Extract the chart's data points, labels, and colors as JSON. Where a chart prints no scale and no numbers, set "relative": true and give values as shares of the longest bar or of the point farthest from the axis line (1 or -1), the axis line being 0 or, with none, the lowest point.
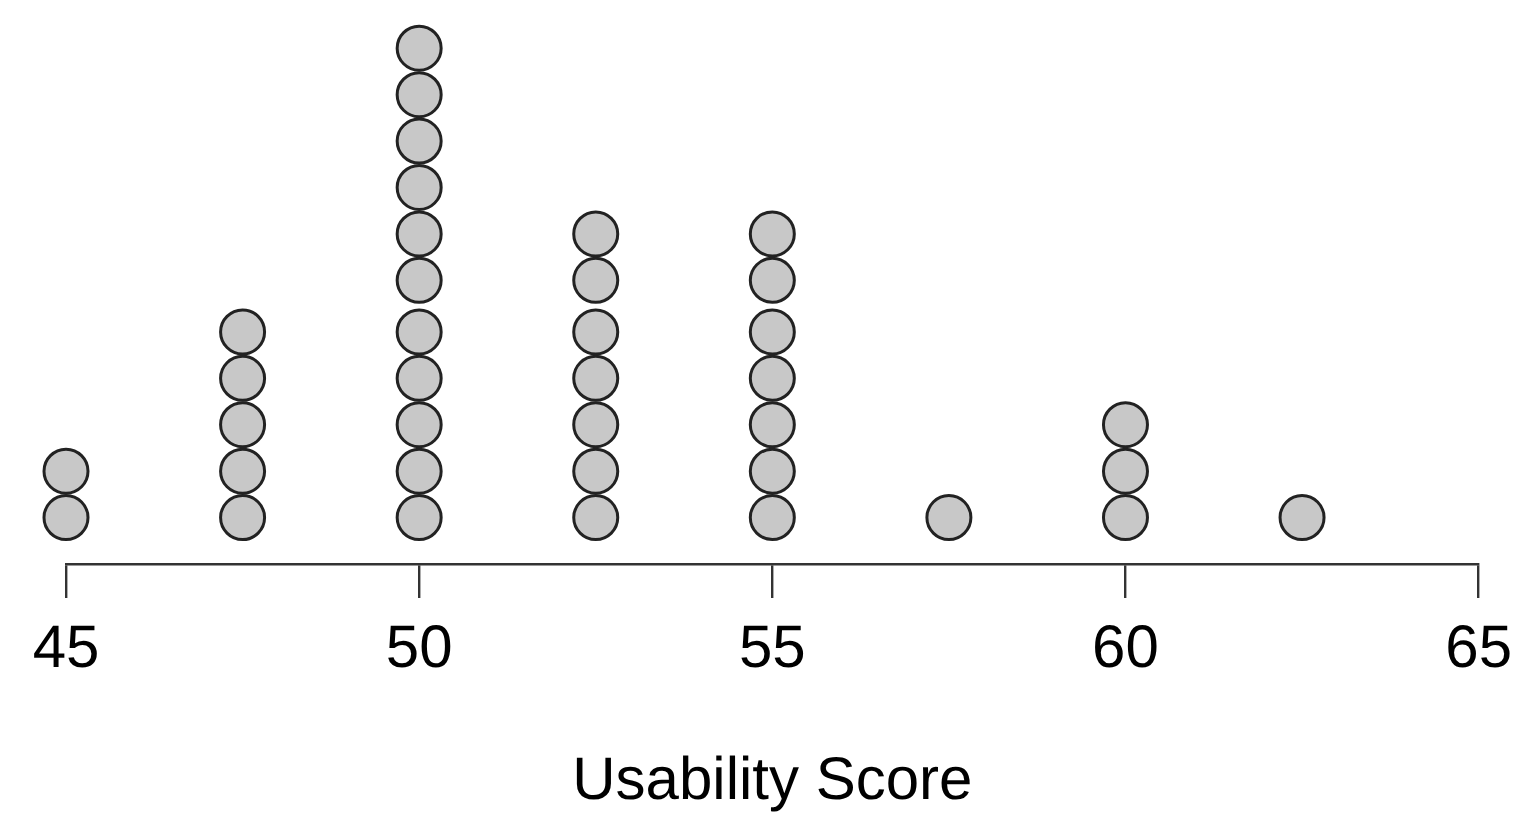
{
  "chart_data": {
    "type": "scatter",
    "xlabel": "Usability Score",
    "relative": true,
    "x": [
      45,
      45,
      47.5,
      47.5,
      47.5,
      47.5,
      47.5,
      50,
      50,
      50,
      50,
      50,
      50,
      50,
      50,
      50,
      50,
      50,
      52.5,
      52.5,
      52.5,
      52.5,
      52.5,
      52.5,
      52.5,
      55,
      55,
      55,
      55,
      55,
      55,
      55,
      57.5,
      60,
      60,
      60,
      62.5
    ],
    "values": [
      0.09,
      0.18,
      0.09,
      0.18,
      0.27,
      0.36,
      0.45,
      0.09,
      0.18,
      0.27,
      0.36,
      0.45,
      0.55,
      0.64,
      0.73,
      0.82,
      0.91,
      1,
      0.09,
      0.18,
      0.27,
      0.36,
      0.45,
      0.55,
      0.64,
      0.09,
      0.18,
      0.27,
      0.36,
      0.45,
      0.55,
      0.64,
      0.09,
      0.09,
      0.18,
      0.27,
      0.09
    ],
    "color": "#c8c8c8",
    "marker": "circle",
    "xlim": [
      45,
      65
    ],
    "xticks": [
      45,
      50,
      55,
      60,
      65
    ],
    "tick_labels": "x",
    "grid": false,
    "legend": false
  }
}
